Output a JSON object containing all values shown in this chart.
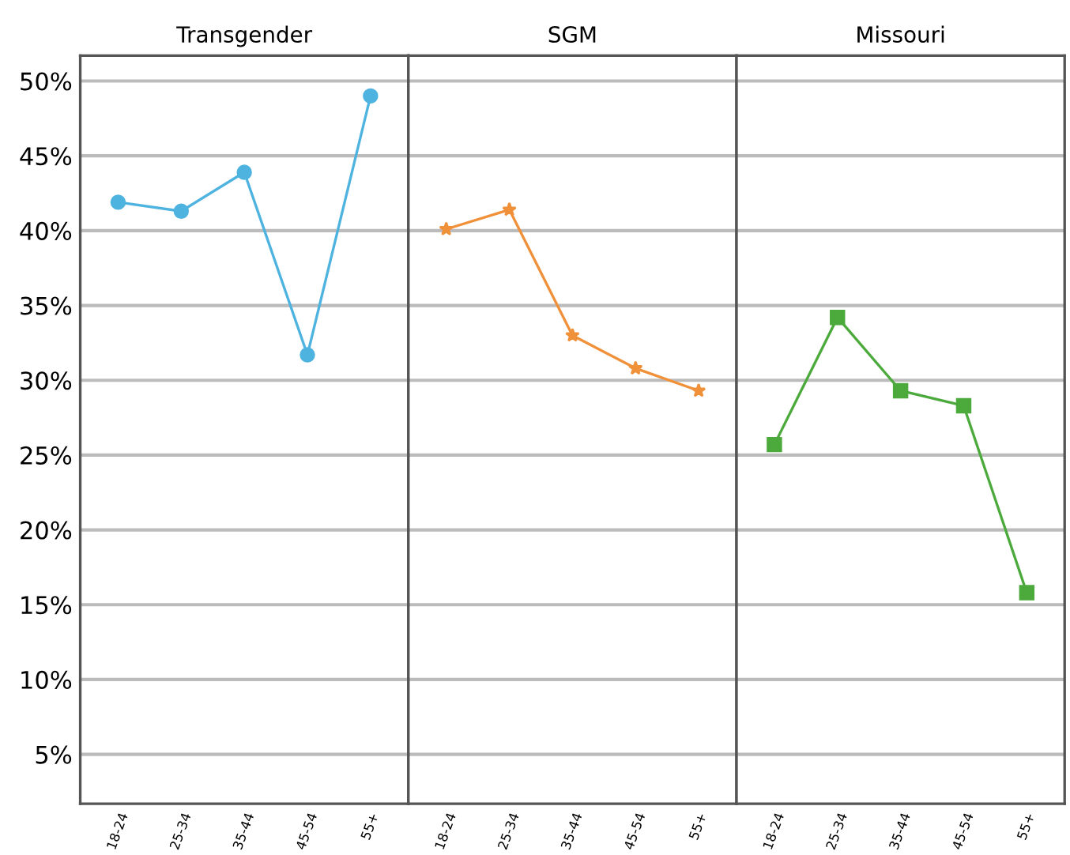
{
  "chart_data": [
    {
      "type": "line",
      "title": "Transgender",
      "categories": [
        "18-24",
        "25-34",
        "35-44",
        "45-54",
        "55+"
      ],
      "series": [
        {
          "color": "#4fb3e0",
          "marker": "circle",
          "values": [
            41.9,
            41.3,
            43.9,
            31.7,
            49.0
          ]
        }
      ],
      "ylim": [
        1.7,
        51.7
      ],
      "yticks": [
        {
          "value": 5,
          "label": "5%"
        },
        {
          "value": 10,
          "label": "10%"
        },
        {
          "value": 15,
          "label": "15%"
        },
        {
          "value": 20,
          "label": "20%"
        },
        {
          "value": 25,
          "label": "25%"
        },
        {
          "value": 30,
          "label": "30%"
        },
        {
          "value": 35,
          "label": "35%"
        },
        {
          "value": 40,
          "label": "40%"
        },
        {
          "value": 45,
          "label": "45%"
        },
        {
          "value": 50,
          "label": "50%"
        }
      ],
      "grid": "y"
    },
    {
      "type": "line",
      "title": "SGM",
      "categories": [
        "18-24",
        "25-34",
        "35-44",
        "45-54",
        "55+"
      ],
      "series": [
        {
          "color": "#f0913a",
          "marker": "star",
          "values": [
            40.1,
            41.4,
            33.0,
            30.8,
            29.3
          ]
        }
      ],
      "ylim": [
        1.7,
        51.7
      ],
      "yticks": [
        {
          "value": 5,
          "label": null
        },
        {
          "value": 10,
          "label": null
        },
        {
          "value": 15,
          "label": null
        },
        {
          "value": 20,
          "label": null
        },
        {
          "value": 25,
          "label": null
        },
        {
          "value": 30,
          "label": null
        },
        {
          "value": 35,
          "label": null
        },
        {
          "value": 40,
          "label": null
        },
        {
          "value": 45,
          "label": null
        },
        {
          "value": 50,
          "label": null
        }
      ],
      "grid": "y",
      "tick_labels": "x"
    },
    {
      "type": "line",
      "title": "Missouri",
      "categories": [
        "18-24",
        "25-34",
        "35-44",
        "45-54",
        "55+"
      ],
      "series": [
        {
          "color": "#4caa3c",
          "marker": "square",
          "values": [
            25.7,
            34.2,
            29.3,
            28.3,
            15.8
          ]
        }
      ],
      "ylim": [
        1.7,
        51.7
      ],
      "yticks": [
        {
          "value": 5,
          "label": null
        },
        {
          "value": 10,
          "label": null
        },
        {
          "value": 15,
          "label": null
        },
        {
          "value": 20,
          "label": null
        },
        {
          "value": 25,
          "label": null
        },
        {
          "value": 30,
          "label": null
        },
        {
          "value": 35,
          "label": null
        },
        {
          "value": 40,
          "label": null
        },
        {
          "value": 45,
          "label": null
        },
        {
          "value": 50,
          "label": null
        }
      ],
      "grid": "y",
      "tick_labels": "x"
    }
  ]
}
